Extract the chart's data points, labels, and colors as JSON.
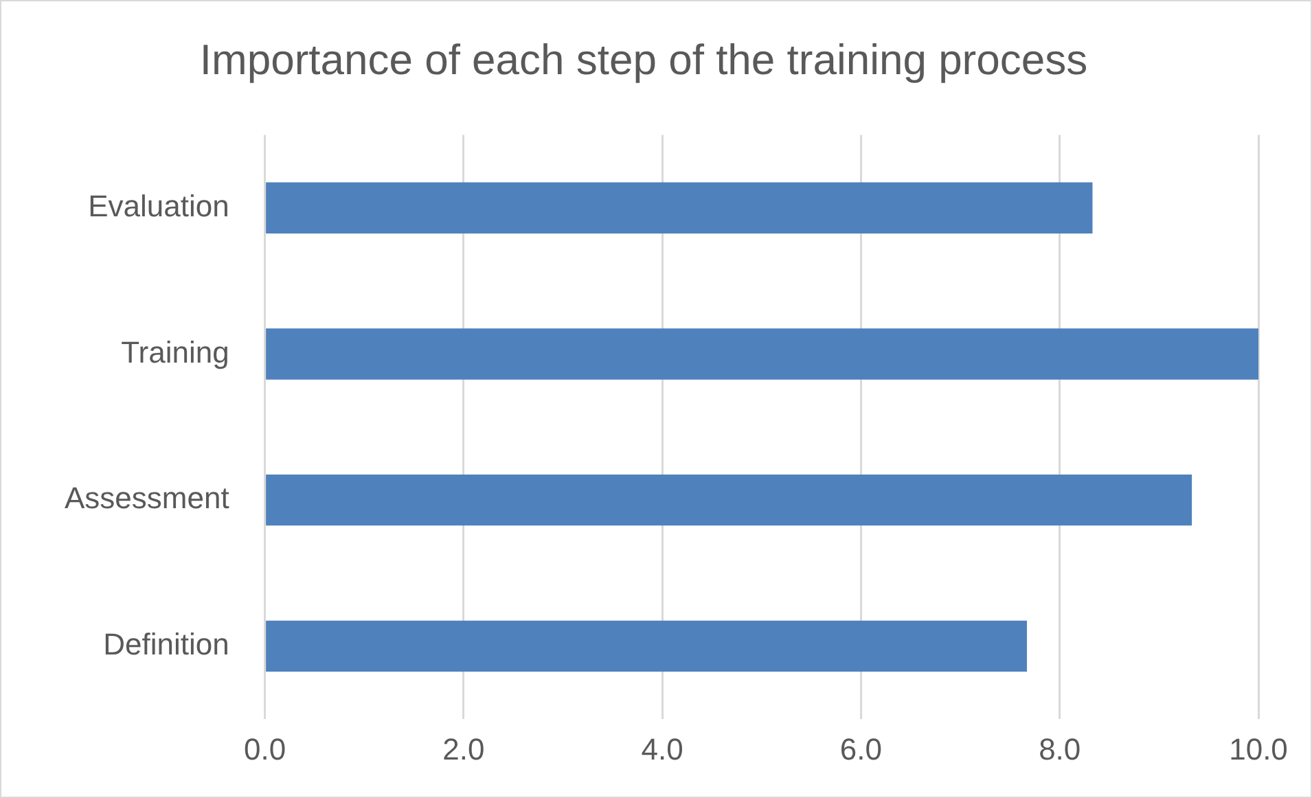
{
  "chart_data": {
    "type": "bar",
    "orientation": "horizontal",
    "title": "Importance of each step of the training process",
    "categories": [
      "Evaluation",
      "Training",
      "Assessment",
      "Definition"
    ],
    "values": [
      8.33,
      10.0,
      9.33,
      7.67
    ],
    "color": "#4f81bd",
    "xlim": [
      0,
      10
    ],
    "xticks": [
      {
        "value": 0,
        "label": "0.0"
      },
      {
        "value": 2,
        "label": "2.0"
      },
      {
        "value": 4,
        "label": "4.0"
      },
      {
        "value": 6,
        "label": "6.0"
      },
      {
        "value": 8,
        "label": "8.0"
      },
      {
        "value": 10,
        "label": "10.0"
      }
    ],
    "grid": "x",
    "legend": false
  }
}
